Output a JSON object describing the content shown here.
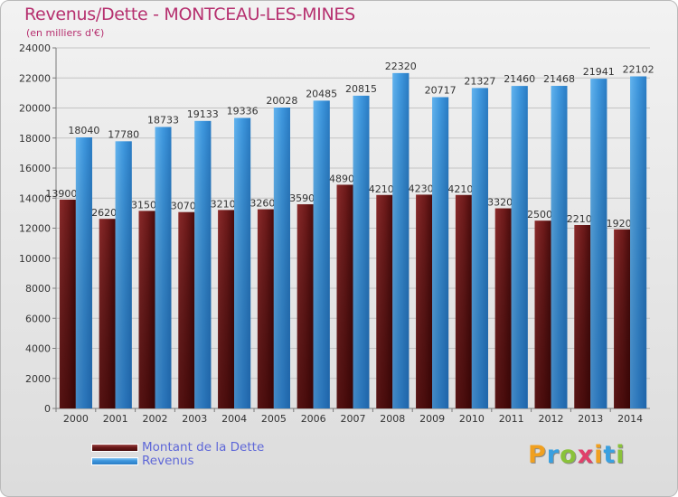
{
  "title": "Revenus/Dette - MONTCEAU-LES-MINES",
  "subtitle": "(en milliers d'€)",
  "colors": {
    "dette": "#6e1a1a",
    "revenus": "#3e97de",
    "title": "#b6306f"
  },
  "logo": "Proxiti",
  "chart_data": {
    "type": "bar",
    "categories": [
      "2000",
      "2001",
      "2002",
      "2003",
      "2004",
      "2005",
      "2006",
      "2007",
      "2008",
      "2009",
      "2010",
      "2011",
      "2012",
      "2013",
      "2014"
    ],
    "series": [
      {
        "name": "Montant de la Dette",
        "values": [
          13900,
          12620,
          13150,
          13070,
          13210,
          13260,
          13590,
          14890,
          14210,
          14230,
          14210,
          13320,
          12500,
          12210,
          11920
        ],
        "labels": [
          "13900",
          "12620",
          "13150",
          "13070",
          "13210",
          "13260",
          "13590",
          "14890",
          "14210",
          "14230",
          "14210",
          "13320",
          "12500",
          "12210",
          "11920"
        ]
      },
      {
        "name": "Revenus",
        "values": [
          18040,
          17780,
          18733,
          19133,
          19336,
          20028,
          20485,
          20815,
          22320,
          20717,
          21327,
          21460,
          21468,
          21941,
          22102
        ],
        "labels": [
          "18040",
          "17780",
          "18733",
          "19133",
          "19336",
          "20028",
          "20485",
          "20815",
          "22320",
          "20717",
          "21327",
          "21460",
          "21468",
          "21941",
          "22102"
        ]
      }
    ],
    "yticks": [
      "0",
      "2000",
      "4000",
      "6000",
      "8000",
      "10000",
      "12000",
      "14000",
      "16000",
      "18000",
      "20000",
      "22000",
      "24000"
    ],
    "ylim": [
      0,
      24000
    ],
    "grid": true,
    "legend_position": "bottom-left"
  }
}
